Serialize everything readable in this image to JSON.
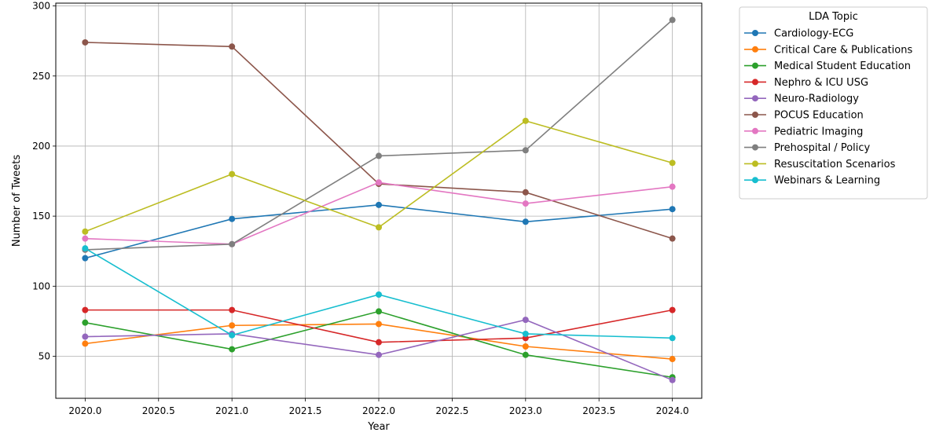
{
  "chart_data": {
    "type": "line",
    "title": "",
    "xlabel": "Year",
    "ylabel": "Number of Tweets",
    "xlim": [
      2019.8,
      2024.2
    ],
    "ylim": [
      20,
      302
    ],
    "xticks": [
      2020.0,
      2020.5,
      2021.0,
      2021.5,
      2022.0,
      2022.5,
      2023.0,
      2023.5,
      2024.0
    ],
    "xtick_labels": [
      "2020.0",
      "2020.5",
      "2021.0",
      "2021.5",
      "2022.0",
      "2022.5",
      "2023.0",
      "2023.5",
      "2024.0"
    ],
    "yticks": [
      50,
      100,
      150,
      200,
      250,
      300
    ],
    "ytick_labels": [
      "50",
      "100",
      "150",
      "200",
      "250",
      "300"
    ],
    "grid": true,
    "legend_title": "LDA Topic",
    "legend_position": "outside-upper-right",
    "x": [
      2020,
      2021,
      2022,
      2023,
      2024
    ],
    "series": [
      {
        "name": "Cardiology-ECG",
        "color": "#1f77b4",
        "values": [
          120,
          148,
          158,
          146,
          155
        ]
      },
      {
        "name": "Critical Care & Publications",
        "color": "#ff7f0e",
        "values": [
          59,
          72,
          73,
          57,
          48
        ]
      },
      {
        "name": "Medical Student Education",
        "color": "#2ca02c",
        "values": [
          74,
          55,
          82,
          51,
          35
        ]
      },
      {
        "name": "Nephro & ICU USG",
        "color": "#d62728",
        "values": [
          83,
          83,
          60,
          63,
          83
        ]
      },
      {
        "name": "Neuro-Radiology",
        "color": "#9467bd",
        "values": [
          64,
          66,
          51,
          76,
          33
        ]
      },
      {
        "name": "POCUS Education",
        "color": "#8c564b",
        "values": [
          274,
          271,
          173,
          167,
          134
        ]
      },
      {
        "name": "Pediatric Imaging",
        "color": "#e377c2",
        "values": [
          134,
          130,
          174,
          159,
          171
        ]
      },
      {
        "name": "Prehospital / Policy",
        "color": "#7f7f7f",
        "values": [
          126,
          130,
          193,
          197,
          290
        ]
      },
      {
        "name": "Resuscitation Scenarios",
        "color": "#bcbd22",
        "values": [
          139,
          180,
          142,
          218,
          188
        ]
      },
      {
        "name": "Webinars & Learning",
        "color": "#17becf",
        "values": [
          127,
          65,
          94,
          66,
          63
        ]
      }
    ]
  }
}
